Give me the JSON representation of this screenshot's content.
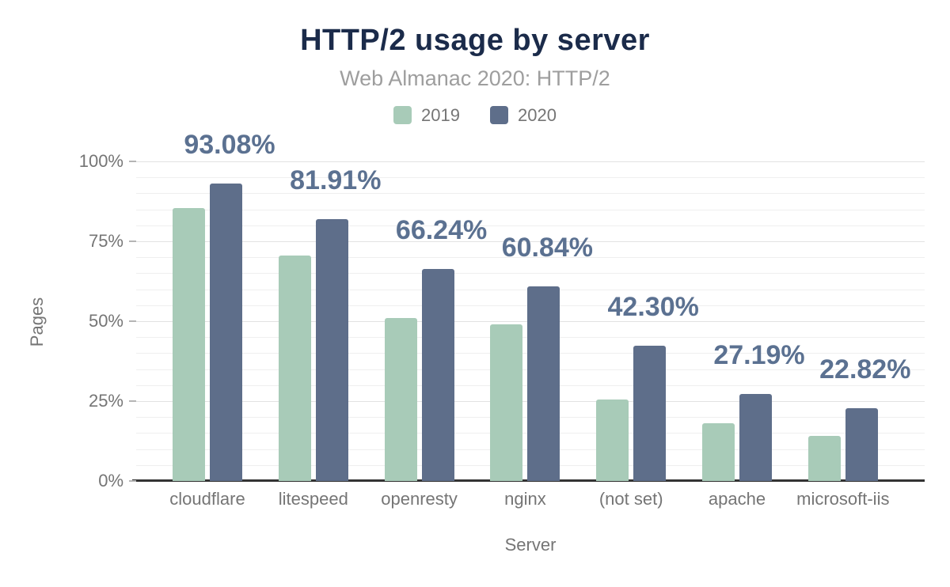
{
  "chart": {
    "title": "HTTP/2 usage by server",
    "subtitle": "Web Almanac 2020: HTTP/2",
    "legend": [
      {
        "label": "2019",
        "color": "#a8cbb8"
      },
      {
        "label": "2020",
        "color": "#5e6e8a"
      }
    ],
    "y_axis": {
      "title": "Pages"
    },
    "x_axis": {
      "title": "Server"
    }
  },
  "chart_data": {
    "type": "bar",
    "title": "HTTP/2 usage by server",
    "subtitle": "Web Almanac 2020: HTTP/2",
    "categories": [
      "cloudflare",
      "litespeed",
      "openresty",
      "nginx",
      "(not set)",
      "apache",
      "microsoft-iis"
    ],
    "series": [
      {
        "name": "2019",
        "color": "#a8cbb8",
        "values": [
          85.5,
          70.5,
          51,
          49,
          25.5,
          18,
          14
        ]
      },
      {
        "name": "2020",
        "color": "#5e6e8a",
        "values": [
          93.08,
          81.91,
          66.24,
          60.84,
          42.3,
          27.19,
          22.82
        ]
      }
    ],
    "data_labels": [
      "93.08%",
      "81.91%",
      "66.24%",
      "60.84%",
      "42.30%",
      "27.19%",
      "22.82%"
    ],
    "data_label_series": "2020",
    "xlabel": "Server",
    "ylabel": "Pages",
    "ylim": [
      0,
      100
    ],
    "y_major_ticks": [
      "0%",
      "25%",
      "50%",
      "75%",
      "100%"
    ],
    "y_major_interval": 25,
    "y_minor_interval": 5,
    "grid": true,
    "legend_position": "top"
  },
  "colors": {
    "title": "#1b2b4a",
    "subtitle": "#9e9e9e",
    "axis_text": "#757575",
    "value_label": "#5b7191",
    "grid_minor": "#efefef",
    "grid_major": "#e2e2e2",
    "axis_line": "#333333",
    "background": "#ffffff"
  }
}
